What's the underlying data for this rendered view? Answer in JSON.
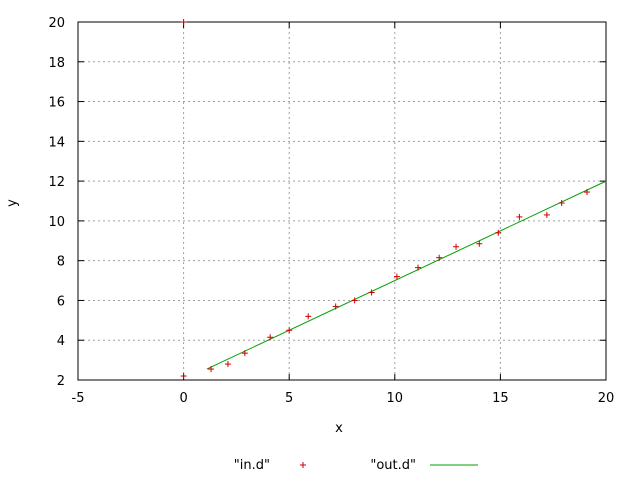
{
  "chart_data": {
    "type": "scatter",
    "title": "",
    "xlabel": "x",
    "ylabel": "y",
    "xlim": [
      -5,
      20
    ],
    "ylim": [
      2,
      20
    ],
    "xticks": [
      -5,
      0,
      5,
      10,
      15,
      20
    ],
    "yticks": [
      2,
      4,
      6,
      8,
      10,
      12,
      14,
      16,
      18,
      20
    ],
    "grid": true,
    "legend_position": "bottom",
    "series": [
      {
        "name": "\"in.d\"",
        "style": "points",
        "marker": "plus",
        "color": "#cc0000",
        "x": [
          0,
          0,
          1.3,
          2.1,
          2.9,
          4.1,
          5.0,
          5.9,
          7.2,
          8.1,
          8.9,
          10.1,
          11.1,
          12.1,
          12.9,
          14.0,
          14.9,
          15.9,
          17.2,
          17.9,
          19.1
        ],
        "y": [
          20.0,
          2.2,
          2.55,
          2.8,
          3.35,
          4.15,
          4.5,
          5.2,
          5.7,
          6.0,
          6.4,
          7.2,
          7.65,
          8.15,
          8.7,
          8.85,
          9.4,
          10.2,
          10.3,
          10.9,
          11.45
        ]
      },
      {
        "name": "\"out.d\"",
        "style": "line",
        "color": "#00a000",
        "x": [
          1.1,
          20
        ],
        "y": [
          2.55,
          12.0
        ]
      }
    ]
  }
}
